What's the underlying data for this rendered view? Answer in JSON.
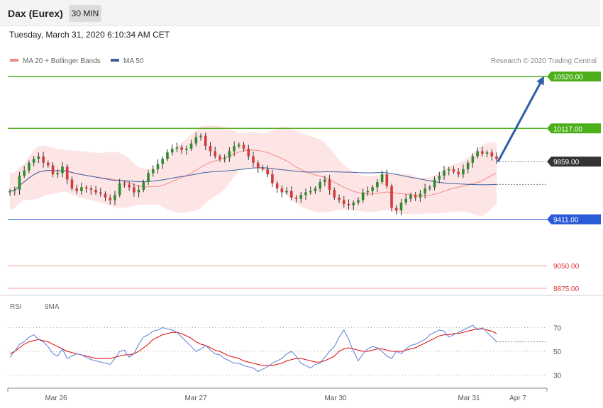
{
  "header": {
    "title": "Dax (Eurex)",
    "interval": "30 MIN"
  },
  "timestamp": "Tuesday, March 31, 2020 6:10:34 AM CET",
  "credit": "Research © 2020 Trading Central",
  "legend": {
    "ma20": {
      "label": "MA 20 + Bollinger Bands",
      "color": "#f28b82"
    },
    "ma50": {
      "label": "MA 50",
      "color": "#3d5f9e"
    }
  },
  "rsi_legend": {
    "rsi": {
      "label": "RSI",
      "color": "#5b7fd6"
    },
    "ma9": {
      "label": "9MA",
      "color": "#e00000"
    }
  },
  "chart_data": [
    {
      "type": "candlestick",
      "title": "Dax (Eurex)",
      "ylim": [
        8875,
        10520
      ],
      "x_ticks": [
        "Mar 26",
        "Mar 27",
        "Mar 30",
        "Mar 31",
        "Apr 7"
      ],
      "levels": [
        {
          "label": "10520.00",
          "value": 10520,
          "kind": "resistance",
          "color": "#4caf1a"
        },
        {
          "label": "10117.00",
          "value": 10117,
          "kind": "resistance",
          "color": "#4caf1a"
        },
        {
          "label": "9859.00",
          "value": 9859,
          "kind": "last",
          "color": "#333333"
        },
        {
          "label": "9411.00",
          "value": 9411,
          "kind": "support",
          "color": "#2a5cd8"
        },
        {
          "label": "9050.00",
          "value": 9050,
          "kind": "support",
          "color": "#e03030"
        },
        {
          "label": "8875.00",
          "value": 8875,
          "kind": "support",
          "color": "#e03030"
        }
      ],
      "close": [
        9630,
        9640,
        9750,
        9790,
        9850,
        9880,
        9900,
        9850,
        9830,
        9760,
        9770,
        9820,
        9720,
        9650,
        9630,
        9660,
        9650,
        9640,
        9620,
        9610,
        9580,
        9560,
        9600,
        9690,
        9680,
        9660,
        9620,
        9640,
        9700,
        9770,
        9800,
        9840,
        9880,
        9930,
        9960,
        9970,
        9950,
        9960,
        10000,
        10050,
        10060,
        9980,
        9940,
        9900,
        9880,
        9890,
        9940,
        9980,
        9990,
        9960,
        9900,
        9850,
        9810,
        9800,
        9760,
        9690,
        9650,
        9620,
        9630,
        9580,
        9570,
        9600,
        9620,
        9630,
        9650,
        9700,
        9720,
        9640,
        9580,
        9560,
        9530,
        9520,
        9540,
        9560,
        9620,
        9630,
        9660,
        9700,
        9760,
        9670,
        9500,
        9480,
        9540,
        9570,
        9600,
        9580,
        9610,
        9650,
        9660,
        9720,
        9750,
        9790,
        9800,
        9780,
        9760,
        9800,
        9850,
        9900,
        9940,
        9920,
        9930,
        9900,
        9880
      ]
    },
    {
      "type": "line",
      "title": "RSI",
      "yticks": [
        30,
        50,
        70
      ],
      "ylim": [
        20,
        80
      ],
      "series": [
        {
          "name": "RSI",
          "values": [
            45,
            50,
            56,
            58,
            62,
            64,
            60,
            58,
            54,
            48,
            46,
            52,
            44,
            46,
            48,
            47,
            45,
            43,
            42,
            41,
            40,
            39,
            44,
            50,
            51,
            45,
            48,
            56,
            62,
            64,
            67,
            68,
            70,
            69,
            68,
            66,
            62,
            58,
            54,
            50,
            52,
            55,
            51,
            48,
            47,
            44,
            42,
            40,
            40,
            38,
            37,
            36,
            33,
            35,
            37,
            40,
            42,
            44,
            48,
            50,
            46,
            40,
            38,
            36,
            39,
            40,
            45,
            50,
            54,
            62,
            68,
            60,
            50,
            42,
            48,
            52,
            54,
            53,
            50,
            46,
            44,
            50,
            48,
            52,
            55,
            56,
            58,
            60,
            64,
            66,
            68,
            67,
            62,
            64,
            66,
            68,
            70,
            72,
            68,
            70,
            66,
            62,
            58
          ]
        },
        {
          "name": "9MA",
          "values": [
            48,
            50,
            53,
            56,
            58,
            59,
            60,
            59,
            58,
            56,
            54,
            52,
            50,
            49,
            48,
            47,
            46,
            45,
            44,
            44,
            44,
            44,
            45,
            46,
            47,
            47,
            48,
            50,
            53,
            56,
            60,
            62,
            64,
            65,
            66,
            66,
            65,
            63,
            61,
            58,
            56,
            55,
            53,
            51,
            50,
            48,
            46,
            45,
            44,
            42,
            41,
            40,
            39,
            38,
            38,
            38,
            39,
            40,
            42,
            43,
            44,
            44,
            43,
            42,
            41,
            41,
            42,
            44,
            46,
            50,
            52,
            53,
            52,
            51,
            50,
            50,
            51,
            52,
            52,
            51,
            50,
            50,
            50,
            51,
            52,
            53,
            55,
            57,
            59,
            61,
            63,
            64,
            64,
            65,
            65,
            66,
            67,
            68,
            69,
            69,
            68,
            67,
            65
          ]
        }
      ]
    }
  ]
}
